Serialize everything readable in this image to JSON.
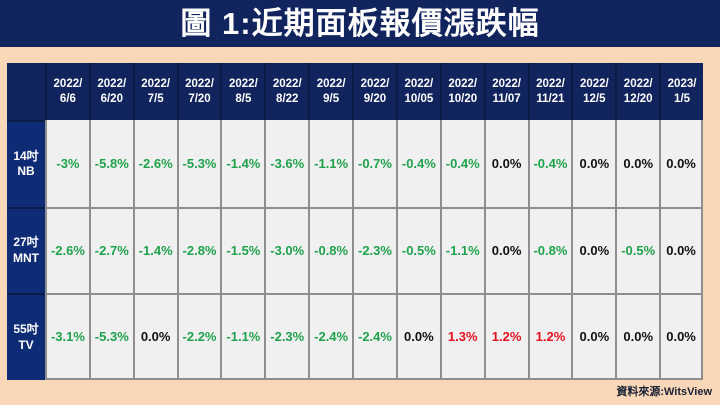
{
  "title": "圖 1:近期面板報價漲跌幅",
  "footer": {
    "source": "資料來源:WitsView"
  },
  "colors": {
    "navy": "#12245E",
    "label_blue": "#0E2B76",
    "peach": "#F9D7B9",
    "cell_bg": "#F1F0F1",
    "grid_line": "#8E8E8E",
    "header_divider": "#0A1B45",
    "positive_red": "#E60F1E",
    "negative_green": "#1FA24C",
    "zero_black": "#111111"
  },
  "chart_data": {
    "type": "table",
    "title": "圖 1:近期面板報價漲跌幅",
    "source": "資料來源:WitsView",
    "columns": [
      "2022/\n6/6",
      "2022/\n6/20",
      "2022/\n7/5",
      "2022/\n7/20",
      "2022/\n8/5",
      "2022/\n8/22",
      "2022/\n9/5",
      "2022/\n9/20",
      "2022/\n10/05",
      "2022/\n10/20",
      "2022/\n11/07",
      "2022/\n11/21",
      "2022/\n12/5",
      "2022/\n12/20",
      "2023/\n1/5"
    ],
    "rows": [
      {
        "label": "14吋\nNB",
        "values": [
          "-3%",
          "-5.8%",
          "-2.6%",
          "-5.3%",
          "-1.4%",
          "-3.6%",
          "-1.1%",
          "-0.7%",
          "-0.4%",
          "-0.4%",
          "0.0%",
          "-0.4%",
          "0.0%",
          "0.0%",
          "0.0%"
        ]
      },
      {
        "label": "27吋\nMNT",
        "values": [
          "-2.6%",
          "-2.7%",
          "-1.4%",
          "-2.8%",
          "-1.5%",
          "-3.0%",
          "-0.8%",
          "-2.3%",
          "-0.5%",
          "-1.1%",
          "0.0%",
          "-0.8%",
          "0.0%",
          "-0.5%",
          "0.0%"
        ]
      },
      {
        "label": "55吋\nTV",
        "values": [
          "-3.1%",
          "-5.3%",
          "0.0%",
          "-2.2%",
          "-1.1%",
          "-2.3%",
          "-2.4%",
          "-2.4%",
          "0.0%",
          "1.3%",
          "1.2%",
          "1.2%",
          "0.0%",
          "0.0%",
          "0.0%"
        ]
      }
    ]
  }
}
